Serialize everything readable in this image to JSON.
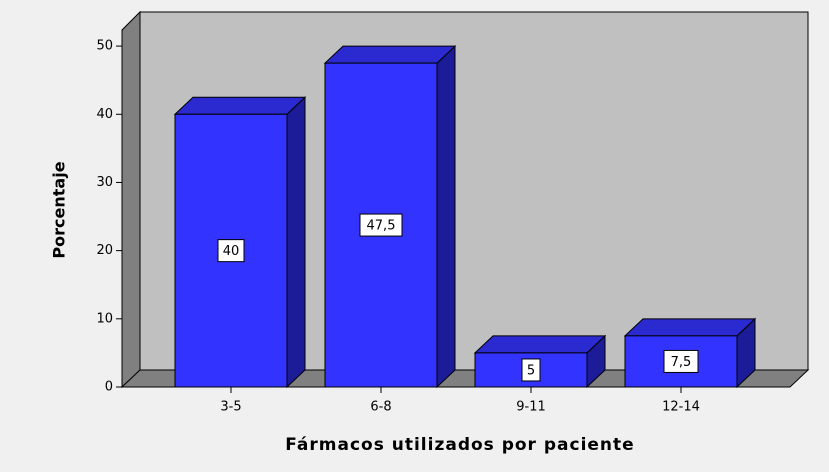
{
  "chart_data": {
    "type": "bar3d",
    "xlabel": "Fármacos utilizados por paciente",
    "ylabel": "Porcentaje",
    "categories": [
      "3-5",
      "6-8",
      "9-11",
      "12-14"
    ],
    "values": [
      40,
      47.5,
      5,
      7.5
    ],
    "value_labels": [
      "40",
      "47,5",
      "5",
      "7,5"
    ],
    "color": "#3333ff",
    "ylim": [
      0,
      55
    ],
    "yticks": [
      0,
      10,
      20,
      30,
      40,
      50
    ]
  }
}
